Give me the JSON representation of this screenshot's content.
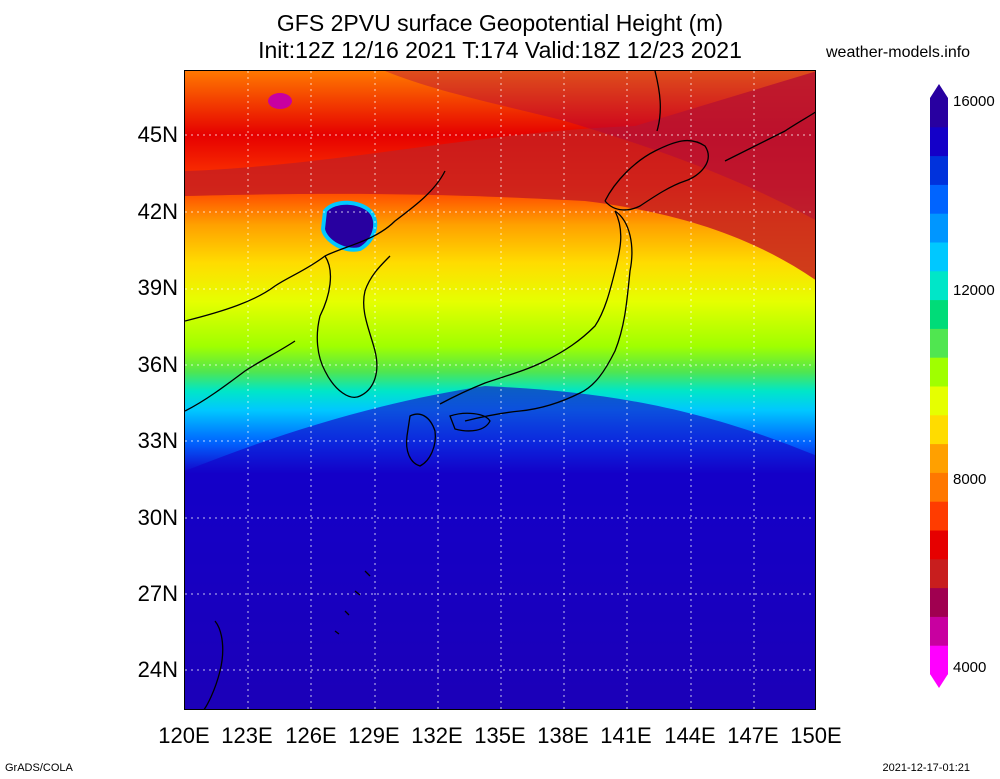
{
  "title_line1": "GFS 2PVU surface Geopotential Height (m)",
  "title_line2": "Init:12Z 12/16 2021 T:174 Valid:18Z 12/23 2021",
  "site": "weather-models.info",
  "lat_labels": [
    "45N",
    "42N",
    "39N",
    "36N",
    "33N",
    "30N",
    "27N",
    "24N"
  ],
  "lon_labels": [
    "120E",
    "123E",
    "126E",
    "129E",
    "132E",
    "135E",
    "138E",
    "141E",
    "144E",
    "147E",
    "150E"
  ],
  "colorbar": {
    "labels": [
      "16000",
      "12000",
      "8000",
      "4000"
    ],
    "colors": [
      "#ff00ff",
      "#c800a0",
      "#a00050",
      "#c81e1e",
      "#e60000",
      "#ff3c00",
      "#ff7800",
      "#ffa000",
      "#ffdc00",
      "#e6ff00",
      "#a0ff00",
      "#50e650",
      "#00dc78",
      "#00e6c8",
      "#00c8ff",
      "#0096ff",
      "#0064ff",
      "#0032dc",
      "#1400c8",
      "#2800a0"
    ]
  },
  "footer_left": "GrADS/COLA",
  "footer_right": "2021-12-17-01:21"
}
